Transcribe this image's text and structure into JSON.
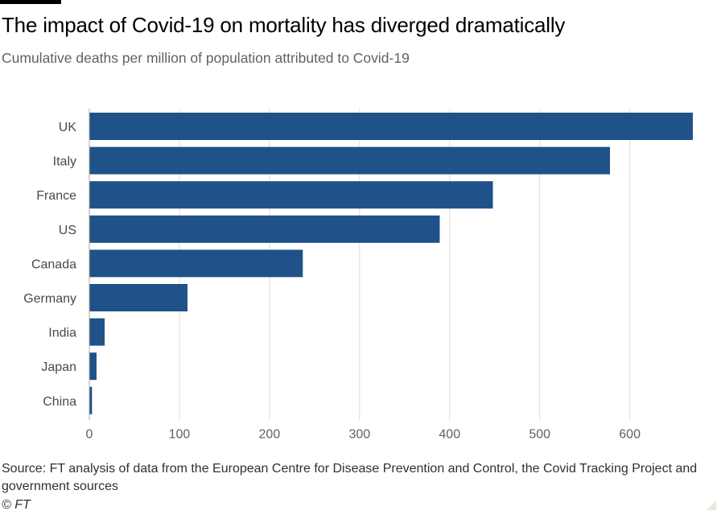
{
  "header": {
    "title": "The impact of Covid-19 on mortality has diverged dramatically",
    "subtitle": "Cumulative deaths per million of population attributed to Covid-19"
  },
  "footer": {
    "source": "Source: FT analysis of data from the European Centre for Disease Prevention and Control, the Covid Tracking Project and government sources",
    "credit": "© FT"
  },
  "colors": {
    "bar": "#1f5288",
    "grid": "#e6d9ce",
    "axis_text": "#66605c",
    "label_text": "#4d4845"
  },
  "chart_data": {
    "type": "bar",
    "orientation": "horizontal",
    "categories": [
      "UK",
      "Italy",
      "France",
      "US",
      "Canada",
      "Germany",
      "India",
      "Japan",
      "China"
    ],
    "values": [
      670,
      578,
      448,
      389,
      237,
      109,
      17,
      8,
      3
    ],
    "xticks": [
      0,
      100,
      200,
      300,
      400,
      500,
      600
    ],
    "xlim": [
      0,
      670
    ],
    "grid": true,
    "legend": "none"
  }
}
